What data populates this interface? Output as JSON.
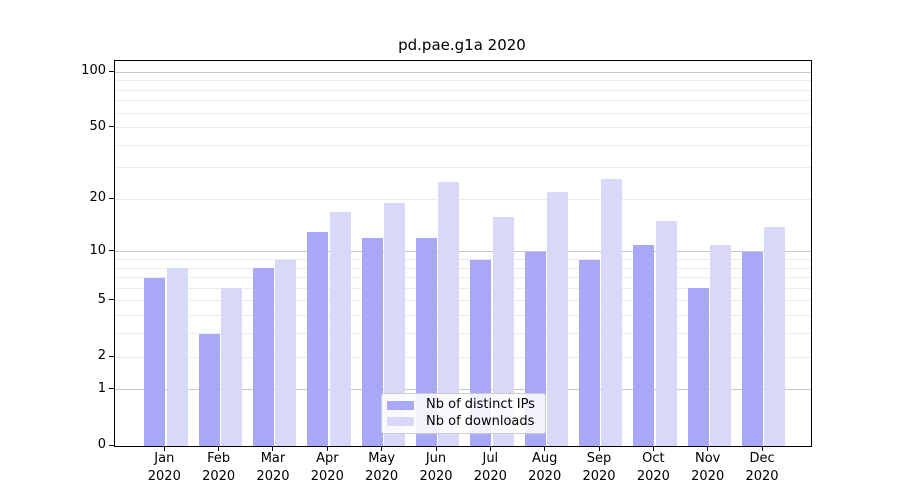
{
  "title": "pd.pae.g1a 2020",
  "chart_data": {
    "type": "bar",
    "title": "pd.pae.g1a 2020",
    "categories": [
      "Jan",
      "Feb",
      "Mar",
      "Apr",
      "May",
      "Jun",
      "Jul",
      "Aug",
      "Sep",
      "Oct",
      "Nov",
      "Dec"
    ],
    "x_tick_year": "2020",
    "series": [
      {
        "name": "Nb of distinct IPs",
        "color": "#a9a8f6",
        "values": [
          7,
          3,
          8,
          13,
          12,
          12,
          9,
          10,
          9,
          11,
          6,
          10
        ]
      },
      {
        "name": "Nb of downloads",
        "color": "#d8d8f9",
        "values": [
          8,
          6,
          9,
          17,
          19,
          25,
          16,
          22,
          26,
          15,
          11,
          14
        ]
      }
    ],
    "yscale": "log1p",
    "yticks": [
      0,
      1,
      2,
      5,
      10,
      20,
      50,
      100
    ],
    "ylim": [
      0,
      115
    ],
    "grid": true,
    "legend_position": "lower-center",
    "xlabel": "",
    "ylabel": ""
  }
}
